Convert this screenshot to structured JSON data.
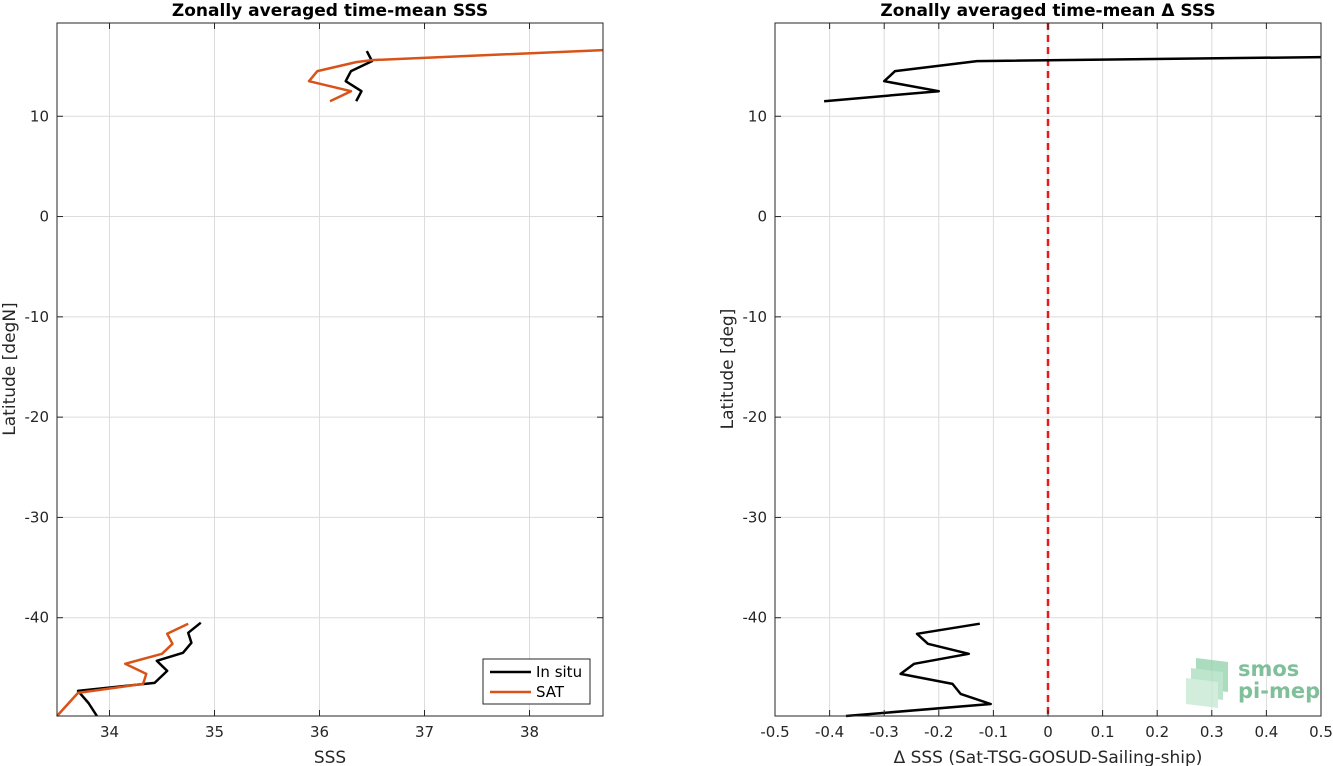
{
  "logo": {
    "line1": "smos",
    "line2": "pi-mep",
    "color": "#7fbf9a"
  },
  "chart_data": [
    {
      "type": "line",
      "title": "Zonally averaged time-mean SSS",
      "xlabel": "SSS",
      "ylabel": "Latitude [degN]",
      "xlim": [
        33.5,
        38.7
      ],
      "ylim": [
        -49.8,
        19.3
      ],
      "xticks": [
        34,
        35,
        36,
        37,
        38
      ],
      "yticks": [
        10,
        0,
        -10,
        -20,
        -30,
        -40
      ],
      "grid": true,
      "legend": {
        "placement": "bottom-right",
        "entries": [
          "In situ",
          "SAT"
        ]
      },
      "series": [
        {
          "name": "In situ",
          "color": "#000000",
          "segments": [
            [
              [
                36.45,
                16.5
              ],
              [
                36.5,
                15.5
              ],
              [
                36.3,
                14.5
              ],
              [
                36.25,
                13.5
              ],
              [
                36.4,
                12.5
              ],
              [
                36.35,
                11.5
              ]
            ],
            [
              [
                34.87,
                -40.5
              ],
              [
                34.75,
                -41.5
              ],
              [
                34.78,
                -42.5
              ],
              [
                34.7,
                -43.5
              ],
              [
                34.45,
                -44.3
              ],
              [
                34.55,
                -45.3
              ],
              [
                34.43,
                -46.5
              ],
              [
                33.7,
                -47.3
              ],
              [
                33.8,
                -48.5
              ],
              [
                33.88,
                -49.8
              ]
            ]
          ]
        },
        {
          "name": "SAT",
          "color": "#d95319",
          "segments": [
            [
              [
                38.7,
                16.6
              ],
              [
                36.5,
                15.6
              ],
              [
                36.35,
                15.4
              ],
              [
                35.98,
                14.5
              ],
              [
                35.9,
                13.5
              ],
              [
                36.3,
                12.5
              ],
              [
                36.1,
                11.5
              ]
            ],
            [
              [
                34.75,
                -40.6
              ],
              [
                34.55,
                -41.6
              ],
              [
                34.6,
                -42.6
              ],
              [
                34.5,
                -43.6
              ],
              [
                34.15,
                -44.6
              ],
              [
                34.35,
                -45.6
              ],
              [
                34.32,
                -46.6
              ],
              [
                33.7,
                -47.5
              ],
              [
                33.5,
                -49.8
              ]
            ]
          ]
        }
      ]
    },
    {
      "type": "line",
      "title": "Zonally averaged time-mean Δ SSS",
      "xlabel": "Δ SSS (Sat-TSG-GOSUD-Sailing-ship)",
      "ylabel": "Latitude [deg]",
      "xlim": [
        -0.5,
        0.5
      ],
      "ylim": [
        -49.8,
        19.3
      ],
      "xticks": [
        -0.5,
        -0.4,
        -0.3,
        -0.2,
        -0.1,
        0,
        0.1,
        0.2,
        0.3,
        0.4,
        0.5
      ],
      "xticklabels": [
        "-0.5",
        "-0.4",
        "-0.3",
        "-0.2",
        "-0.1",
        "0",
        "0.1",
        "0.2",
        "0.3",
        "0.4",
        "0.5"
      ],
      "yticks": [
        10,
        0,
        -10,
        -20,
        -30,
        -40
      ],
      "grid": true,
      "reference_line": {
        "x": 0,
        "color": "#e41a1c",
        "style": "dashed"
      },
      "series": [
        {
          "color": "#000000",
          "segments": [
            [
              [
                0.5,
                15.9
              ],
              [
                -0.13,
                15.5
              ],
              [
                -0.28,
                14.5
              ],
              [
                -0.3,
                13.5
              ],
              [
                -0.2,
                12.5
              ],
              [
                -0.41,
                11.5
              ]
            ],
            [
              [
                -0.125,
                -40.6
              ],
              [
                -0.24,
                -41.6
              ],
              [
                -0.22,
                -42.6
              ],
              [
                -0.145,
                -43.6
              ],
              [
                -0.245,
                -44.6
              ],
              [
                -0.27,
                -45.6
              ],
              [
                -0.175,
                -46.6
              ],
              [
                -0.16,
                -47.6
              ],
              [
                -0.105,
                -48.6
              ],
              [
                -0.37,
                -49.8
              ]
            ]
          ]
        }
      ]
    }
  ]
}
